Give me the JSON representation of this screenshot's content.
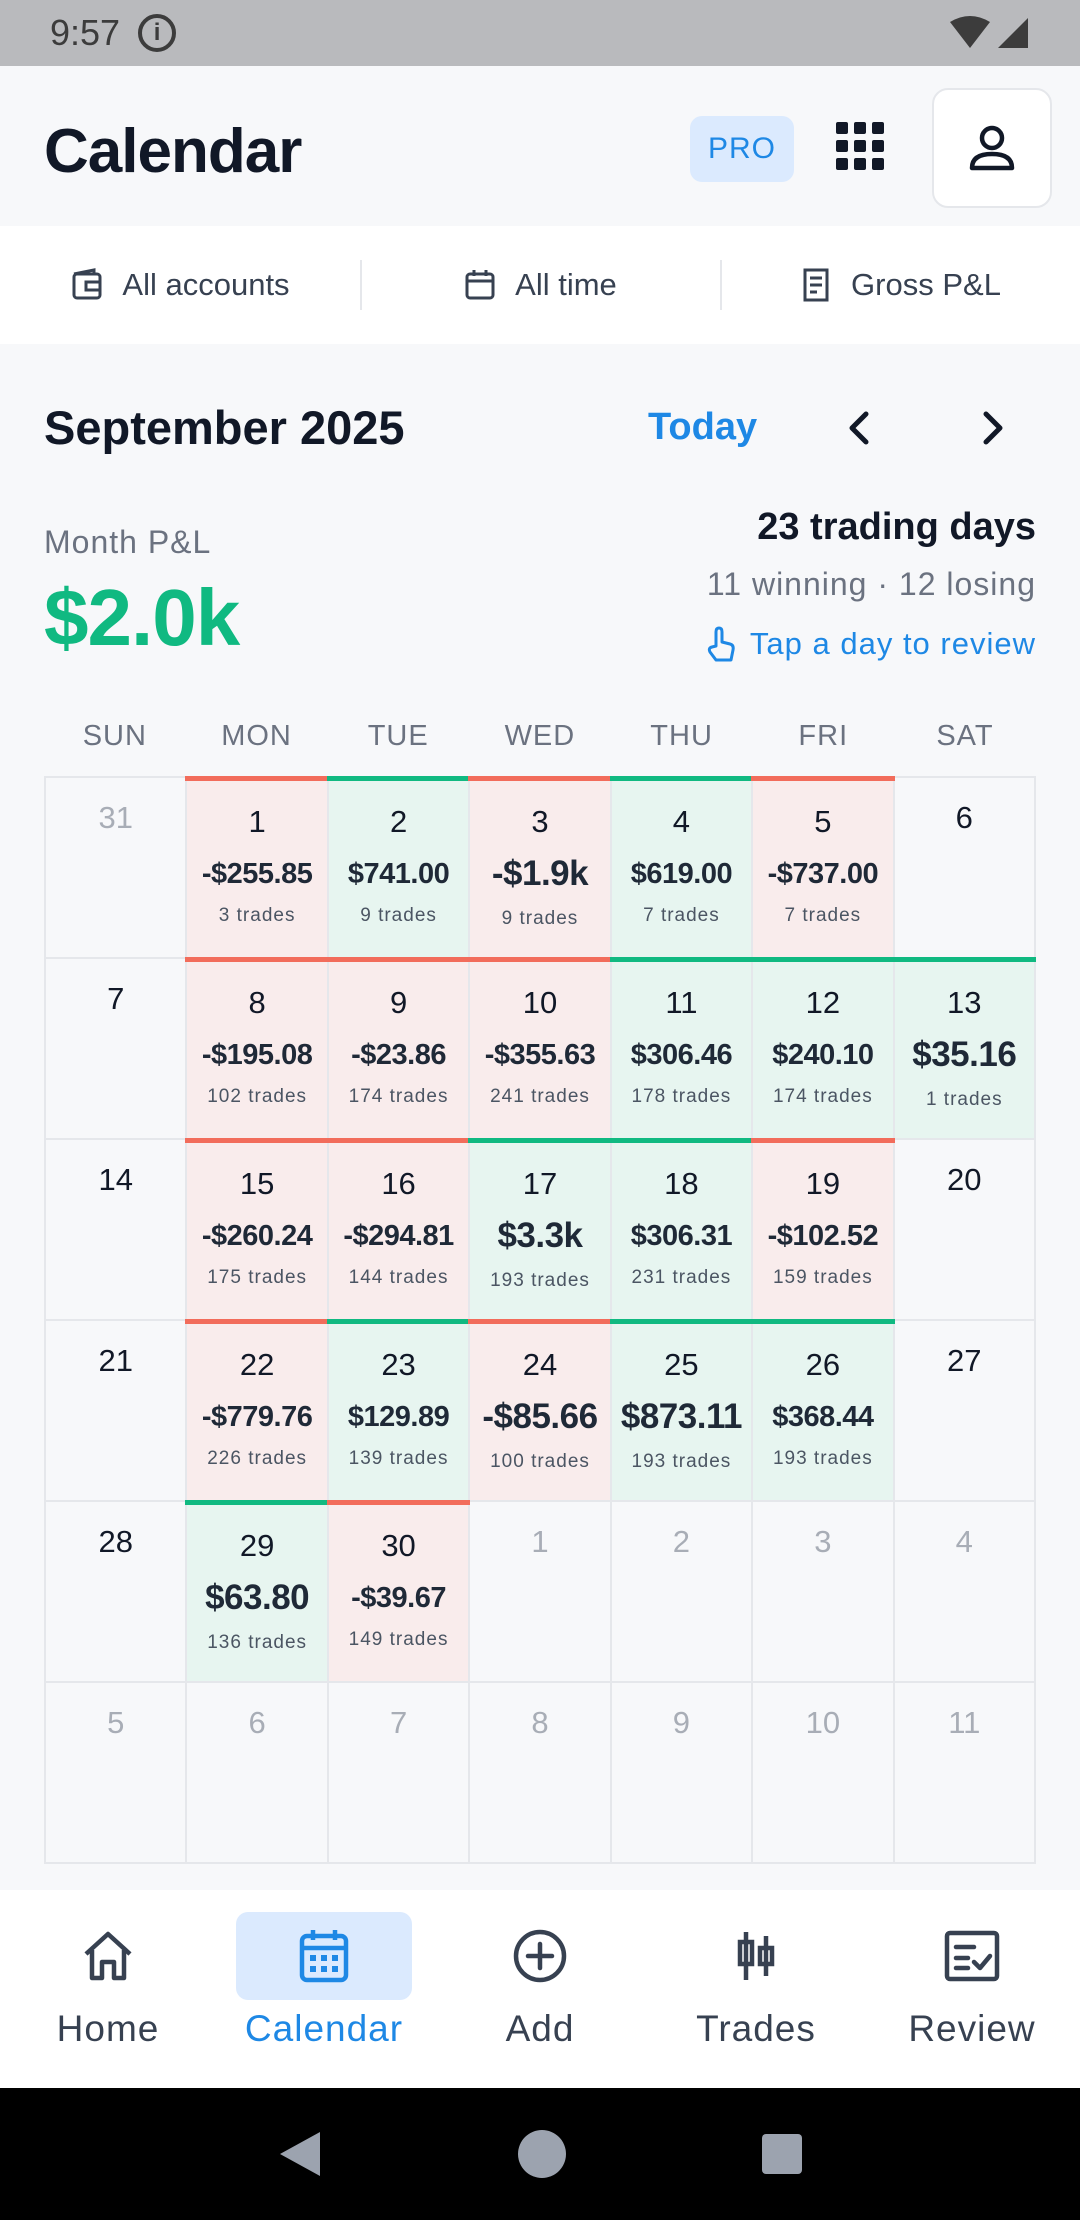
{
  "status_bar": {
    "time": "9:57"
  },
  "header": {
    "title": "Calendar",
    "pro_badge": "PRO"
  },
  "filters": [
    {
      "label": "All accounts",
      "icon": "wallet-icon"
    },
    {
      "label": "All time",
      "icon": "calendar-icon"
    },
    {
      "label": "Gross P&L",
      "icon": "receipt-icon"
    }
  ],
  "month": {
    "title": "September 2025",
    "today_label": "Today",
    "pnl_label": "Month P&L",
    "pnl_value": "$2.0k",
    "trading_days": "23 trading days",
    "win_lose": "11 winning · 12 losing",
    "tap_hint": "Tap a day to review"
  },
  "colors": {
    "accent": "#1e88e5",
    "win": "#10b981",
    "loss": "#f26c5b",
    "win_bg": "#e7f5f0",
    "loss_bg": "#f9ecec"
  },
  "weekdays": [
    "SUN",
    "MON",
    "TUE",
    "WED",
    "THU",
    "FRI",
    "SAT"
  ],
  "days": [
    {
      "day": "31",
      "muted": true
    },
    {
      "day": "1",
      "status": "loss",
      "pnl": "-$255.85",
      "trades": "3 trades"
    },
    {
      "day": "2",
      "status": "win",
      "pnl": "$741.00",
      "trades": "9 trades"
    },
    {
      "day": "3",
      "status": "loss",
      "pnl": "-$1.9k",
      "trades": "9 trades",
      "big": true
    },
    {
      "day": "4",
      "status": "win",
      "pnl": "$619.00",
      "trades": "7 trades"
    },
    {
      "day": "5",
      "status": "loss",
      "pnl": "-$737.00",
      "trades": "7 trades"
    },
    {
      "day": "6"
    },
    {
      "day": "7"
    },
    {
      "day": "8",
      "status": "loss",
      "pnl": "-$195.08",
      "trades": "102 trades"
    },
    {
      "day": "9",
      "status": "loss",
      "pnl": "-$23.86",
      "trades": "174 trades"
    },
    {
      "day": "10",
      "status": "loss",
      "pnl": "-$355.63",
      "trades": "241 trades"
    },
    {
      "day": "11",
      "status": "win",
      "pnl": "$306.46",
      "trades": "178 trades"
    },
    {
      "day": "12",
      "status": "win",
      "pnl": "$240.10",
      "trades": "174 trades"
    },
    {
      "day": "13",
      "status": "win",
      "pnl": "$35.16",
      "trades": "1 trades",
      "big": true
    },
    {
      "day": "14"
    },
    {
      "day": "15",
      "status": "loss",
      "pnl": "-$260.24",
      "trades": "175 trades"
    },
    {
      "day": "16",
      "status": "loss",
      "pnl": "-$294.81",
      "trades": "144 trades"
    },
    {
      "day": "17",
      "status": "win",
      "pnl": "$3.3k",
      "trades": "193 trades",
      "big": true
    },
    {
      "day": "18",
      "status": "win",
      "pnl": "$306.31",
      "trades": "231 trades"
    },
    {
      "day": "19",
      "status": "loss",
      "pnl": "-$102.52",
      "trades": "159 trades"
    },
    {
      "day": "20"
    },
    {
      "day": "21"
    },
    {
      "day": "22",
      "status": "loss",
      "pnl": "-$779.76",
      "trades": "226 trades"
    },
    {
      "day": "23",
      "status": "win",
      "pnl": "$129.89",
      "trades": "139 trades"
    },
    {
      "day": "24",
      "status": "loss",
      "pnl": "-$85.66",
      "trades": "100 trades",
      "big": true
    },
    {
      "day": "25",
      "status": "win",
      "pnl": "$873.11",
      "trades": "193 trades",
      "big": true
    },
    {
      "day": "26",
      "status": "win",
      "pnl": "$368.44",
      "trades": "193 trades"
    },
    {
      "day": "27"
    },
    {
      "day": "28"
    },
    {
      "day": "29",
      "status": "win",
      "pnl": "$63.80",
      "trades": "136 trades",
      "big": true
    },
    {
      "day": "30",
      "status": "loss",
      "pnl": "-$39.67",
      "trades": "149 trades"
    },
    {
      "day": "1",
      "muted": true
    },
    {
      "day": "2",
      "muted": true
    },
    {
      "day": "3",
      "muted": true
    },
    {
      "day": "4",
      "muted": true
    },
    {
      "day": "5",
      "muted": true
    },
    {
      "day": "6",
      "muted": true
    },
    {
      "day": "7",
      "muted": true
    },
    {
      "day": "8",
      "muted": true
    },
    {
      "day": "9",
      "muted": true
    },
    {
      "day": "10",
      "muted": true
    },
    {
      "day": "11",
      "muted": true
    }
  ],
  "bottom_nav": [
    {
      "label": "Home",
      "icon": "home-icon"
    },
    {
      "label": "Calendar",
      "icon": "calendar-icon",
      "active": true
    },
    {
      "label": "Add",
      "icon": "add-circle-icon"
    },
    {
      "label": "Trades",
      "icon": "candlestick-icon"
    },
    {
      "label": "Review",
      "icon": "review-checklist-icon"
    }
  ]
}
